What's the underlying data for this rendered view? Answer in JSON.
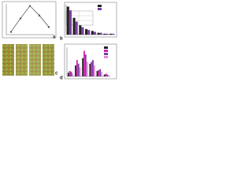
{
  "panels": [
    "a",
    "b",
    "c",
    "d"
  ],
  "chart_data": [
    {
      "type": "line",
      "categories": [
        null,
        null,
        null,
        null,
        null
      ],
      "color": "#333333",
      "values": [
        3,
        17,
        30,
        20,
        8
      ],
      "ylim": [
        0,
        32
      ]
    },
    {
      "type": "bar",
      "categories": [
        null,
        null,
        null,
        null,
        null,
        null,
        null,
        null
      ],
      "ylim": [
        0,
        32
      ],
      "series": [
        {
          "color": "#222222",
          "values": [
            30,
            18,
            10,
            6,
            4,
            2,
            1,
            1
          ]
        },
        {
          "color": "#7a3fa0",
          "values": [
            26,
            14,
            8,
            5,
            3,
            2,
            1,
            1
          ]
        }
      ]
    },
    {
      "type": "bar",
      "categories": [
        null,
        null,
        null,
        null,
        null,
        null
      ],
      "ylim": [
        0,
        32
      ],
      "series": [
        {
          "color": "#222222",
          "values": [
            4,
            12,
            20,
            14,
            6,
            2
          ]
        },
        {
          "color": "#d21fb4",
          "values": [
            6,
            18,
            28,
            16,
            7,
            3
          ]
        },
        {
          "color": "#7a3fa0",
          "values": [
            5,
            14,
            24,
            18,
            8,
            2
          ]
        },
        {
          "color": "#e48ad6",
          "values": [
            3,
            10,
            16,
            12,
            5,
            1
          ]
        }
      ]
    }
  ]
}
